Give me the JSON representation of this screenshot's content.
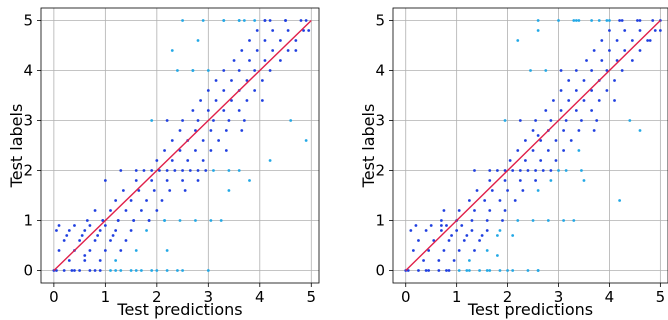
{
  "chart_data": [
    {
      "type": "scatter",
      "xlabel": "Test predictions",
      "ylabel": "Test labels",
      "xlim": [
        -0.25,
        5.15
      ],
      "ylim": [
        -0.25,
        5.25
      ],
      "xticks": [
        "0",
        "1",
        "2",
        "3",
        "4",
        "5"
      ],
      "yticks": [
        "0",
        "1",
        "2",
        "3",
        "4",
        "5"
      ],
      "grid": true,
      "reference_line": {
        "x": [
          0,
          5
        ],
        "y": [
          0,
          5
        ],
        "color": "#e0204a"
      },
      "point_colors": {
        "near": "#1f3fe0",
        "far": "#22a8e6"
      },
      "series": [
        {
          "x": [
            0.05,
            0.2,
            0.35,
            0.5,
            0.7,
            0.9,
            1.1,
            1.3,
            1.5,
            1.7,
            1.9,
            2.2,
            2.5,
            3.0,
            0.3,
            0.6,
            0.9,
            1.2,
            0.1,
            0.4,
            0.7,
            1.0,
            1.3,
            1.6,
            0.2,
            0.5,
            0.8,
            1.1,
            1.4,
            0.05,
            0.3,
            0.6,
            0.9,
            1.2,
            1.5,
            1.8,
            0.1,
            0.4,
            0.7,
            1.0,
            0.25,
            0.55,
            0.85,
            1.15,
            0.95,
            1.25,
            1.55,
            1.85,
            2.15,
            0.8,
            1.1,
            1.4,
            1.7,
            2.0,
            0.65,
            0.95,
            1.25,
            1.55,
            1.85,
            2.15,
            2.45,
            2.75,
            3.05,
            3.25,
            1.2,
            1.5,
            1.8,
            2.1,
            1.35,
            1.65,
            1.95,
            2.25,
            2.55,
            1.6,
            1.9,
            2.2,
            2.5,
            2.8,
            1.75,
            2.05,
            2.35,
            2.65,
            2.95,
            1.3,
            1.6,
            1.9,
            2.2,
            2.5,
            2.8,
            3.1,
            3.4,
            3.6,
            2.0,
            2.3,
            2.6,
            2.9,
            2.15,
            2.45,
            2.75,
            3.05,
            3.35,
            2.3,
            2.6,
            2.9,
            3.2,
            2.45,
            2.75,
            3.05,
            3.35,
            3.65,
            1.9,
            2.2,
            2.5,
            2.8,
            3.1,
            3.4,
            3.7,
            2.7,
            3.0,
            3.3,
            3.6,
            2.85,
            3.15,
            3.45,
            3.75,
            4.05,
            3.0,
            3.3,
            3.6,
            3.9,
            3.15,
            3.45,
            3.75,
            4.05,
            2.4,
            2.7,
            3.0,
            3.3,
            3.6,
            3.9,
            4.2,
            3.5,
            3.8,
            4.1,
            4.4,
            3.65,
            3.95,
            4.25,
            4.55,
            3.8,
            4.1,
            4.4,
            4.7,
            3.95,
            4.25,
            4.55,
            4.85,
            3.3,
            3.6,
            3.9,
            4.2,
            4.5,
            4.8,
            2.5,
            2.9,
            3.3,
            3.7,
            4.1,
            4.5,
            4.9,
            0.0,
            0.4,
            0.8,
            1.2,
            1.6,
            2.0,
            2.4,
            2.2,
            1.0,
            0.6,
            2.7,
            4.2,
            3.8,
            3.4,
            4.6,
            4.9,
            2.3,
            2.8,
            3.6,
            4.1,
            4.7,
            4.95
          ],
          "y": [
            0,
            0,
            0,
            0,
            0,
            0,
            0,
            0,
            0,
            0,
            0,
            0,
            0,
            0,
            0.2,
            0.2,
            0.2,
            0.2,
            0.4,
            0.4,
            0.4,
            0.4,
            0.4,
            0.4,
            0.6,
            0.6,
            0.6,
            0.6,
            0.6,
            0.8,
            0.8,
            0.8,
            0.8,
            0.8,
            0.8,
            0.8,
            0.9,
            0.9,
            0.9,
            0.9,
            0.7,
            0.7,
            0.7,
            0.7,
            1.0,
            1.0,
            1.0,
            1.0,
            1.0,
            1.2,
            1.2,
            1.2,
            1.2,
            1.2,
            1.0,
            1.0,
            1.0,
            1.0,
            1.0,
            1.0,
            1.0,
            1.0,
            1.0,
            1.0,
            1.4,
            1.4,
            1.4,
            1.4,
            1.6,
            1.6,
            1.6,
            1.6,
            1.6,
            1.8,
            1.8,
            1.8,
            1.8,
            1.8,
            2.0,
            2.0,
            2.0,
            2.0,
            2.0,
            2.0,
            2.0,
            2.0,
            2.0,
            2.0,
            2.0,
            2.0,
            2.0,
            2.0,
            2.2,
            2.2,
            2.2,
            2.2,
            2.4,
            2.4,
            2.4,
            2.4,
            2.4,
            2.6,
            2.6,
            2.6,
            2.6,
            2.8,
            2.8,
            2.8,
            2.8,
            2.8,
            3.0,
            3.0,
            3.0,
            3.0,
            3.0,
            3.0,
            3.0,
            3.2,
            3.2,
            3.2,
            3.2,
            3.4,
            3.4,
            3.4,
            3.4,
            3.4,
            3.6,
            3.6,
            3.6,
            3.6,
            3.8,
            3.8,
            3.8,
            3.8,
            4.0,
            4.0,
            4.0,
            4.0,
            4.0,
            4.0,
            4.0,
            4.2,
            4.2,
            4.2,
            4.2,
            4.4,
            4.4,
            4.4,
            4.4,
            4.6,
            4.6,
            4.6,
            4.6,
            4.8,
            4.8,
            4.8,
            4.8,
            5.0,
            5.0,
            5.0,
            5.0,
            5.0,
            5.0,
            5.0,
            5.0,
            5.0,
            5.0,
            5.0,
            5.0,
            5.0,
            0,
            0,
            0,
            0,
            0,
            0,
            0,
            0.4,
            1.8,
            0.3,
            4.0,
            2.2,
            1.8,
            1.6,
            3.0,
            2.6,
            4.4,
            4.6,
            5.0,
            5.0,
            4.4,
            4.8
          ]
        }
      ]
    },
    {
      "type": "scatter",
      "xlabel": "Test predictions",
      "ylabel": "Test labels",
      "xlim": [
        -0.25,
        5.15
      ],
      "ylim": [
        -0.25,
        5.25
      ],
      "xticks": [
        "0",
        "1",
        "2",
        "3",
        "4",
        "5"
      ],
      "yticks": [
        "0",
        "1",
        "2",
        "3",
        "4",
        "5"
      ],
      "grid": true,
      "reference_line": {
        "x": [
          0,
          5
        ],
        "y": [
          0,
          5
        ],
        "color": "#e0204a"
      },
      "point_colors": {
        "near": "#1f3fe0",
        "far": "#22a8e6"
      },
      "series": [
        {
          "x": [
            0.05,
            0.25,
            0.45,
            0.65,
            0.85,
            1.05,
            1.25,
            1.45,
            1.65,
            1.85,
            2.1,
            2.4,
            2.6,
            0.35,
            0.65,
            0.95,
            1.25,
            0.15,
            0.45,
            0.75,
            1.05,
            1.35,
            1.6,
            0.25,
            0.55,
            0.85,
            1.15,
            1.45,
            0.1,
            0.4,
            0.7,
            1.0,
            1.3,
            1.6,
            1.85,
            0.2,
            0.5,
            0.8,
            1.1,
            0.9,
            1.2,
            1.5,
            1.8,
            2.1,
            0.75,
            1.05,
            1.35,
            1.65,
            1.95,
            0.7,
            1.0,
            1.3,
            1.6,
            1.9,
            2.2,
            2.5,
            2.8,
            3.1,
            3.3,
            1.25,
            1.55,
            1.85,
            2.15,
            1.4,
            1.7,
            2.0,
            2.3,
            2.6,
            1.65,
            1.95,
            2.25,
            2.55,
            2.85,
            1.8,
            2.1,
            2.4,
            2.7,
            3.0,
            1.35,
            1.65,
            1.95,
            2.25,
            2.55,
            2.85,
            3.15,
            3.45,
            2.05,
            2.35,
            2.65,
            2.95,
            2.2,
            2.5,
            2.8,
            3.1,
            3.4,
            2.35,
            2.65,
            2.95,
            3.25,
            2.5,
            2.8,
            3.1,
            3.4,
            3.7,
            1.95,
            2.25,
            2.55,
            2.85,
            3.15,
            3.45,
            3.75,
            2.75,
            3.05,
            3.35,
            3.65,
            2.9,
            3.2,
            3.5,
            3.8,
            4.1,
            3.05,
            3.35,
            3.65,
            3.95,
            3.2,
            3.5,
            3.8,
            4.1,
            2.45,
            2.75,
            3.05,
            3.35,
            3.65,
            3.95,
            4.25,
            3.55,
            3.85,
            4.15,
            4.45,
            3.7,
            4.0,
            4.3,
            4.6,
            3.85,
            4.15,
            4.45,
            4.75,
            4.0,
            4.3,
            4.6,
            4.9,
            3.35,
            3.65,
            3.95,
            4.25,
            4.55,
            4.85,
            2.6,
            3.0,
            3.4,
            3.8,
            4.2,
            4.6,
            5.0,
            0.0,
            0.4,
            0.8,
            1.2,
            1.6,
            2.0,
            2.6,
            1.8,
            0.7,
            2.6,
            4.2,
            3.5,
            4.4,
            4.6,
            2.2,
            2.6,
            3.3,
            4.0,
            4.8,
            5.0
          ],
          "y": [
            0,
            0,
            0,
            0,
            0,
            0,
            0,
            0,
            0,
            0,
            0,
            0,
            0,
            0.2,
            0.2,
            0.2,
            0.2,
            0.4,
            0.4,
            0.4,
            0.4,
            0.4,
            0.4,
            0.6,
            0.6,
            0.6,
            0.6,
            0.6,
            0.8,
            0.8,
            0.8,
            0.8,
            0.8,
            0.8,
            0.8,
            0.9,
            0.9,
            0.9,
            0.9,
            0.7,
            0.7,
            0.7,
            0.7,
            0.7,
            1.2,
            1.2,
            1.2,
            1.2,
            1.2,
            1.0,
            1.0,
            1.0,
            1.0,
            1.0,
            1.0,
            1.0,
            1.0,
            1.0,
            1.0,
            1.4,
            1.4,
            1.4,
            1.4,
            1.6,
            1.6,
            1.6,
            1.6,
            1.6,
            1.8,
            1.8,
            1.8,
            1.8,
            1.8,
            2.0,
            2.0,
            2.0,
            2.0,
            2.0,
            2.0,
            2.0,
            2.0,
            2.0,
            2.0,
            2.0,
            2.0,
            2.0,
            2.2,
            2.2,
            2.2,
            2.2,
            2.4,
            2.4,
            2.4,
            2.4,
            2.4,
            2.6,
            2.6,
            2.6,
            2.6,
            2.8,
            2.8,
            2.8,
            2.8,
            2.8,
            3.0,
            3.0,
            3.0,
            3.0,
            3.0,
            3.0,
            3.0,
            3.2,
            3.2,
            3.2,
            3.2,
            3.4,
            3.4,
            3.4,
            3.4,
            3.4,
            3.6,
            3.6,
            3.6,
            3.6,
            3.8,
            3.8,
            3.8,
            3.8,
            4.0,
            4.0,
            4.0,
            4.0,
            4.0,
            4.0,
            4.0,
            4.2,
            4.2,
            4.2,
            4.2,
            4.4,
            4.4,
            4.4,
            4.4,
            4.6,
            4.6,
            4.6,
            4.6,
            4.8,
            4.8,
            4.8,
            4.8,
            5.0,
            5.0,
            5.0,
            5.0,
            5.0,
            5.0,
            5.0,
            5.0,
            5.0,
            5.0,
            5.0,
            5.0,
            5.0,
            0,
            0,
            0,
            0,
            0,
            0,
            0,
            0.3,
            0.9,
            2.7,
            1.4,
            1.8,
            3.0,
            2.8,
            4.6,
            4.8,
            5.0,
            5.0,
            4.6,
            4.8
          ]
        }
      ]
    }
  ]
}
